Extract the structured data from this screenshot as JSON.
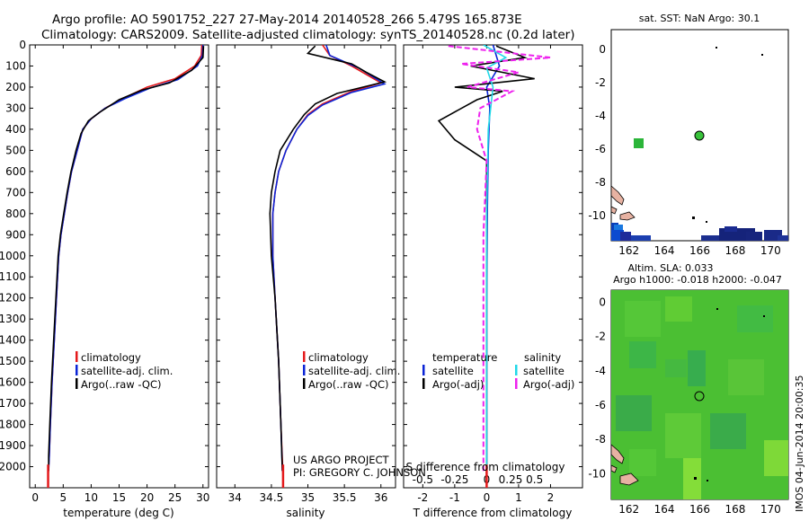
{
  "header": {
    "line1": "Argo profile: AO 5901752_227 27-May-2014 20140528_266 5.479S 165.873E",
    "line2": "Climatology: CARS2009. Satellite-adjusted climatology: synTS_20140528.nc (0.2d later)"
  },
  "panels": {
    "temperature": {
      "xlabel": "temperature (deg C)",
      "legend": [
        "climatology",
        "satellite-adj. clim.",
        "Argo(..raw -QC)"
      ]
    },
    "salinity": {
      "xlabel": "salinity",
      "legend": [
        "climatology",
        "satellite-adj. clim.",
        "Argo(..raw -QC)"
      ],
      "credit1": "US ARGO PROJECT",
      "credit2": "PI: GREGORY C. JOHNSON"
    },
    "difference": {
      "xlabel": "T difference from climatology",
      "top_xlabel": "S difference from climatology",
      "legend_col1_title": "temperature",
      "legend_col2_title": "salinity",
      "legend_col1": [
        "satellite",
        "Argo(-adj)"
      ],
      "legend_col2": [
        "satellite",
        "Argo(-adj)"
      ]
    },
    "sst_map": {
      "title": "sat. SST: NaN Argo: 30.1"
    },
    "sla_map": {
      "title1": "Altim. SLA: 0.033",
      "title2": "Argo h1000: -0.018 h2000: -0.047"
    },
    "side_stamp": "IMOS 04-Jun-2014 20:00:35"
  },
  "colors": {
    "climatology": "#e41a1c",
    "satellite": "#0b24d6",
    "argo": "#000000",
    "sal_satellite": "#22d8e8",
    "sal_argo": "#ee22ee"
  },
  "chart_data": [
    {
      "type": "line",
      "name": "temperature",
      "xlim": [
        -1,
        31
      ],
      "ylim": [
        2100,
        0
      ],
      "xticks": [
        0,
        5,
        10,
        15,
        20,
        25,
        30
      ],
      "yticks": [
        0,
        100,
        200,
        300,
        400,
        500,
        600,
        700,
        800,
        900,
        1000,
        1100,
        1200,
        1300,
        1400,
        1500,
        1600,
        1700,
        1800,
        1900,
        2000
      ],
      "series": [
        {
          "name": "climatology",
          "color_key": "climatology",
          "points": [
            [
              29.8,
              0
            ],
            [
              29.7,
              50
            ],
            [
              28.5,
              100
            ],
            [
              25,
              160
            ],
            [
              20,
              200
            ],
            [
              16,
              250
            ],
            [
              12.5,
              300
            ],
            [
              10,
              350
            ],
            [
              8.5,
              400
            ],
            [
              7.5,
              500
            ],
            [
              6.5,
              600
            ],
            [
              5.8,
              700
            ],
            [
              5.2,
              800
            ],
            [
              4.6,
              900
            ],
            [
              4.2,
              1000
            ],
            [
              3.8,
              1200
            ],
            [
              3.4,
              1400
            ],
            [
              3.0,
              1600
            ],
            [
              2.7,
              1800
            ],
            [
              2.5,
              1950
            ],
            [
              2.3,
              2050
            ]
          ]
        },
        {
          "name": "satellite-adj. clim.",
          "color_key": "satellite",
          "points": [
            [
              30.0,
              0
            ],
            [
              29.9,
              50
            ],
            [
              29.0,
              100
            ],
            [
              25.5,
              165
            ],
            [
              20.5,
              205
            ],
            [
              16,
              255
            ],
            [
              12.5,
              300
            ],
            [
              10,
              350
            ],
            [
              8.5,
              400
            ],
            [
              7.5,
              500
            ],
            [
              6.5,
              600
            ],
            [
              5.8,
              700
            ],
            [
              5.2,
              800
            ],
            [
              4.6,
              900
            ],
            [
              4.2,
              1000
            ],
            [
              3.8,
              1200
            ],
            [
              3.4,
              1400
            ],
            [
              3.0,
              1600
            ],
            [
              2.7,
              1800
            ],
            [
              2.5,
              1950
            ],
            [
              2.4,
              2020
            ]
          ]
        },
        {
          "name": "Argo(..raw -QC)",
          "color_key": "argo",
          "points": [
            [
              30.1,
              5
            ],
            [
              30.0,
              60
            ],
            [
              28.0,
              120
            ],
            [
              24,
              180
            ],
            [
              19,
              215
            ],
            [
              15,
              260
            ],
            [
              11.5,
              320
            ],
            [
              9.5,
              360
            ],
            [
              8.2,
              420
            ],
            [
              7.3,
              500
            ],
            [
              6.4,
              600
            ],
            [
              5.7,
              700
            ],
            [
              5.1,
              800
            ],
            [
              4.5,
              900
            ],
            [
              4.1,
              1000
            ],
            [
              3.7,
              1200
            ],
            [
              3.3,
              1400
            ],
            [
              2.9,
              1600
            ],
            [
              2.6,
              1800
            ],
            [
              2.4,
              1950
            ],
            [
              2.4,
              2020
            ]
          ]
        }
      ]
    },
    {
      "type": "line",
      "name": "salinity",
      "xlim": [
        33.75,
        36.2
      ],
      "ylim": [
        2100,
        0
      ],
      "xticks": [
        34,
        34.5,
        35,
        35.5,
        36
      ],
      "series": [
        {
          "name": "climatology",
          "color_key": "climatology",
          "points": [
            [
              35.2,
              0
            ],
            [
              35.3,
              50
            ],
            [
              35.6,
              100
            ],
            [
              36.0,
              180
            ],
            [
              35.6,
              220
            ],
            [
              35.2,
              280
            ],
            [
              35.0,
              330
            ],
            [
              34.85,
              400
            ],
            [
              34.7,
              500
            ],
            [
              34.6,
              600
            ],
            [
              34.55,
              700
            ],
            [
              34.52,
              800
            ],
            [
              34.52,
              1000
            ],
            [
              34.55,
              1200
            ],
            [
              34.6,
              1500
            ],
            [
              34.63,
              1800
            ],
            [
              34.66,
              2050
            ]
          ]
        },
        {
          "name": "satellite-adj. clim.",
          "color_key": "satellite",
          "points": [
            [
              35.25,
              0
            ],
            [
              35.3,
              50
            ],
            [
              35.7,
              110
            ],
            [
              36.05,
              185
            ],
            [
              35.6,
              225
            ],
            [
              35.2,
              285
            ],
            [
              35.0,
              335
            ],
            [
              34.85,
              400
            ],
            [
              34.7,
              500
            ],
            [
              34.6,
              600
            ],
            [
              34.55,
              700
            ],
            [
              34.52,
              800
            ],
            [
              34.52,
              1000
            ],
            [
              34.55,
              1200
            ],
            [
              34.6,
              1500
            ],
            [
              34.63,
              1800
            ],
            [
              34.65,
              2020
            ]
          ]
        },
        {
          "name": "Argo(..raw -QC)",
          "color_key": "argo",
          "points": [
            [
              35.1,
              5
            ],
            [
              35.0,
              40
            ],
            [
              35.6,
              90
            ],
            [
              35.8,
              130
            ],
            [
              36.05,
              175
            ],
            [
              35.4,
              230
            ],
            [
              35.1,
              280
            ],
            [
              34.95,
              330
            ],
            [
              34.8,
              400
            ],
            [
              34.62,
              500
            ],
            [
              34.55,
              600
            ],
            [
              34.5,
              700
            ],
            [
              34.48,
              800
            ],
            [
              34.5,
              1000
            ],
            [
              34.55,
              1200
            ],
            [
              34.6,
              1500
            ],
            [
              34.63,
              1800
            ],
            [
              34.65,
              2020
            ]
          ]
        }
      ]
    },
    {
      "type": "line",
      "name": "difference",
      "xlim": [
        -2.6,
        3.0
      ],
      "ylim": [
        2100,
        0
      ],
      "xticks": [
        -2,
        -1,
        0,
        1,
        2
      ],
      "top_xticks": [
        "-0.5",
        "-0.25",
        "0",
        "0.25",
        "0.5"
      ],
      "series": [
        {
          "name": "temperature satellite",
          "color_key": "satellite",
          "dash": false,
          "points": [
            [
              0.2,
              0
            ],
            [
              0.4,
              100
            ],
            [
              0.0,
              200
            ],
            [
              0.1,
              300
            ],
            [
              0.05,
              500
            ],
            [
              0.02,
              800
            ],
            [
              0.0,
              1200
            ],
            [
              0.0,
              2050
            ]
          ]
        },
        {
          "name": "temperature Argo(-adj)",
          "color_key": "argo",
          "dash": false,
          "points": [
            [
              0.3,
              5
            ],
            [
              1.2,
              60
            ],
            [
              -0.5,
              100
            ],
            [
              1.5,
              160
            ],
            [
              -1.0,
              200
            ],
            [
              0.5,
              220
            ],
            [
              -0.3,
              260
            ],
            [
              -1.5,
              360
            ],
            [
              -1.0,
              450
            ],
            [
              0.0,
              550
            ],
            [
              0.0,
              700
            ],
            [
              0.0,
              1000
            ],
            [
              0.0,
              1500
            ],
            [
              0.0,
              2020
            ]
          ]
        },
        {
          "name": "salinity satellite",
          "color_key": "sal_satellite",
          "dash": false,
          "points": [
            [
              -0.1,
              0
            ],
            [
              0.6,
              60
            ],
            [
              0.0,
              110
            ],
            [
              0.2,
              200
            ],
            [
              0.05,
              400
            ],
            [
              0.0,
              800
            ],
            [
              0.0,
              2050
            ]
          ]
        },
        {
          "name": "salinity Argo(-adj)",
          "color_key": "sal_argo",
          "dash": true,
          "points": [
            [
              -1.2,
              5
            ],
            [
              2.0,
              60
            ],
            [
              -0.8,
              90
            ],
            [
              1.0,
              130
            ],
            [
              -0.6,
              200
            ],
            [
              0.8,
              220
            ],
            [
              -0.2,
              300
            ],
            [
              -0.3,
              400
            ],
            [
              0.0,
              550
            ],
            [
              -0.1,
              900
            ],
            [
              -0.1,
              1400
            ],
            [
              -0.1,
              2020
            ]
          ]
        }
      ]
    },
    {
      "type": "heatmap",
      "name": "sst_map",
      "xlim": [
        161,
        171
      ],
      "ylim": [
        -11.5,
        1.2
      ],
      "xticks": [
        162,
        164,
        166,
        168,
        170
      ],
      "yticks": [
        0,
        -2,
        -4,
        -6,
        -8,
        -10
      ],
      "argo_position": [
        165.873,
        -5.479
      ]
    },
    {
      "type": "heatmap",
      "name": "sla_map",
      "xlim": [
        161,
        171
      ],
      "ylim": [
        -11.5,
        0.7
      ],
      "xticks": [
        162,
        164,
        166,
        168,
        170
      ],
      "yticks": [
        0,
        -2,
        -4,
        -6,
        -8,
        -10
      ],
      "argo_position": [
        165.873,
        -5.479
      ]
    }
  ]
}
